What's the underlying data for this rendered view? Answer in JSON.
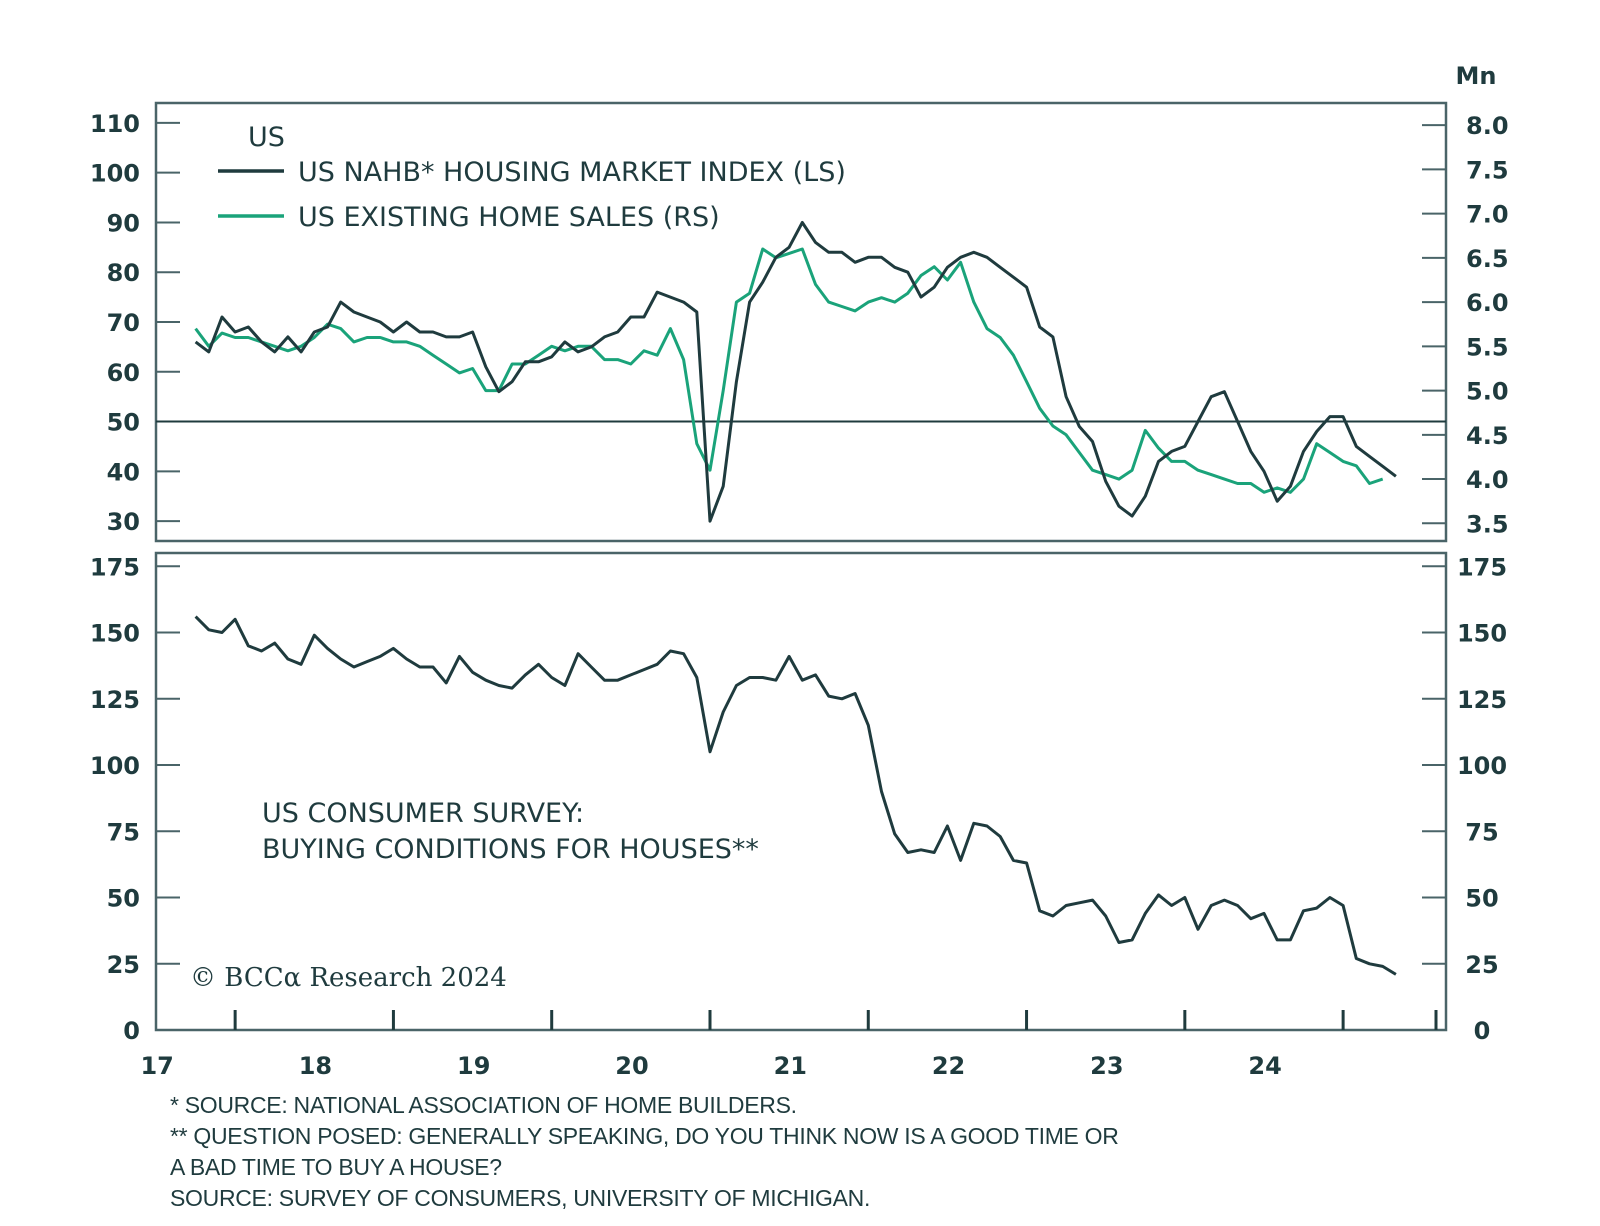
{
  "chart_data": [
    {
      "type": "line",
      "title": "US",
      "unit_right": "Mn",
      "legend": [
        {
          "name": "US NAHB* HOUSING MARKET INDEX (LS)",
          "color": "#1f3b3e",
          "axis": "left"
        },
        {
          "name": "US EXISTING HOME SALES (RS)",
          "color": "#1aa37a",
          "axis": "right"
        }
      ],
      "legend_placement": "top-left",
      "reference_line": {
        "axis": "left",
        "value": 50
      },
      "ylim_left": [
        26,
        114
      ],
      "ylim_right": [
        3.3,
        8.25
      ],
      "yticks_left": [
        110,
        100,
        90,
        80,
        70,
        60,
        50,
        40,
        30
      ],
      "yticks_right": [
        "8.0",
        "7.5",
        "7.0",
        "6.5",
        "6.0",
        "5.5",
        "5.0",
        "4.5",
        "4.0",
        "3.5"
      ],
      "x_start": 2016.75,
      "x_step_months": 1,
      "series": [
        {
          "name": "US NAHB* HOUSING MARKET INDEX (LS)",
          "axis": "left",
          "values": [
            66,
            64,
            71,
            68,
            69,
            66,
            64,
            67,
            64,
            68,
            69,
            74,
            72,
            71,
            70,
            68,
            70,
            68,
            68,
            67,
            67,
            68,
            61,
            56,
            58,
            62,
            62,
            63,
            66,
            64,
            65,
            67,
            68,
            71,
            71,
            76,
            75,
            74,
            72,
            30,
            37,
            58,
            74,
            78,
            83,
            85,
            90,
            86,
            84,
            84,
            82,
            83,
            83,
            81,
            80,
            75,
            77,
            81,
            83,
            84,
            83,
            81,
            79,
            77,
            69,
            67,
            55,
            49,
            46,
            38,
            33,
            31,
            35,
            42,
            44,
            45,
            50,
            55,
            56,
            50,
            44,
            40,
            34,
            37,
            44,
            48,
            51,
            51,
            45,
            43,
            41,
            39
          ]
        },
        {
          "name": "US EXISTING HOME SALES (RS)",
          "axis": "right",
          "values": [
            5.7,
            5.5,
            5.65,
            5.6,
            5.6,
            5.55,
            5.5,
            5.45,
            5.5,
            5.6,
            5.75,
            5.7,
            5.55,
            5.6,
            5.6,
            5.55,
            5.55,
            5.5,
            5.4,
            5.3,
            5.2,
            5.25,
            5.0,
            5.0,
            5.3,
            5.3,
            5.4,
            5.5,
            5.45,
            5.5,
            5.5,
            5.35,
            5.35,
            5.3,
            5.45,
            5.4,
            5.7,
            5.35,
            4.4,
            4.1,
            5.0,
            6.0,
            6.1,
            6.6,
            6.5,
            6.55,
            6.6,
            6.2,
            6.0,
            5.95,
            5.9,
            6.0,
            6.05,
            6.0,
            6.1,
            6.3,
            6.4,
            6.25,
            6.45,
            6.0,
            5.7,
            5.6,
            5.4,
            5.1,
            4.8,
            4.6,
            4.5,
            4.3,
            4.1,
            4.05,
            4.0,
            4.1,
            4.55,
            4.35,
            4.2,
            4.2,
            4.1,
            4.05,
            4.0,
            3.95,
            3.95,
            3.85,
            3.9,
            3.85,
            4.0,
            4.4,
            4.3,
            4.2,
            4.15,
            3.95,
            4.0
          ]
        }
      ]
    },
    {
      "type": "line",
      "title": "US CONSUMER SURVEY: BUYING CONDITIONS FOR HOUSES**",
      "title_lines": [
        "US CONSUMER SURVEY:",
        "BUYING CONDITIONS FOR HOUSES**"
      ],
      "ylim": [
        0,
        180
      ],
      "yticks": [
        175,
        150,
        125,
        100,
        75,
        50,
        25,
        0
      ],
      "x_start": 2016.75,
      "x_step_months": 1,
      "xticks": [
        "17",
        "18",
        "19",
        "20",
        "21",
        "22",
        "23",
        "24"
      ],
      "xlim": [
        2016.5,
        2024.65
      ],
      "series": [
        {
          "name": "US CONSUMER SURVEY: BUYING CONDITIONS FOR HOUSES**",
          "color": "#1f3b3e",
          "values": [
            156,
            151,
            150,
            155,
            145,
            143,
            146,
            140,
            138,
            149,
            144,
            140,
            137,
            139,
            141,
            144,
            140,
            137,
            137,
            131,
            141,
            135,
            132,
            130,
            129,
            134,
            138,
            133,
            130,
            142,
            137,
            132,
            132,
            134,
            136,
            138,
            143,
            142,
            133,
            105,
            120,
            130,
            133,
            133,
            132,
            141,
            132,
            134,
            126,
            125,
            127,
            115,
            90,
            74,
            67,
            68,
            67,
            77,
            64,
            78,
            77,
            73,
            64,
            63,
            45,
            43,
            47,
            48,
            49,
            43,
            33,
            34,
            44,
            51,
            47,
            50,
            38,
            47,
            49,
            47,
            42,
            44,
            34,
            34,
            45,
            46,
            50,
            47,
            27,
            25,
            24,
            21
          ]
        }
      ]
    }
  ],
  "copyright": "© BCCα Research 2024",
  "footnotes": [
    "*  SOURCE: NATIONAL ASSOCIATION OF HOME BUILDERS.",
    "** QUESTION POSED: GENERALLY SPEAKING, DO YOU THINK NOW IS A GOOD TIME OR",
    "   A BAD TIME TO BUY A HOUSE?",
    "   SOURCE: SURVEY OF CONSUMERS, UNIVERSITY OF MICHIGAN."
  ]
}
